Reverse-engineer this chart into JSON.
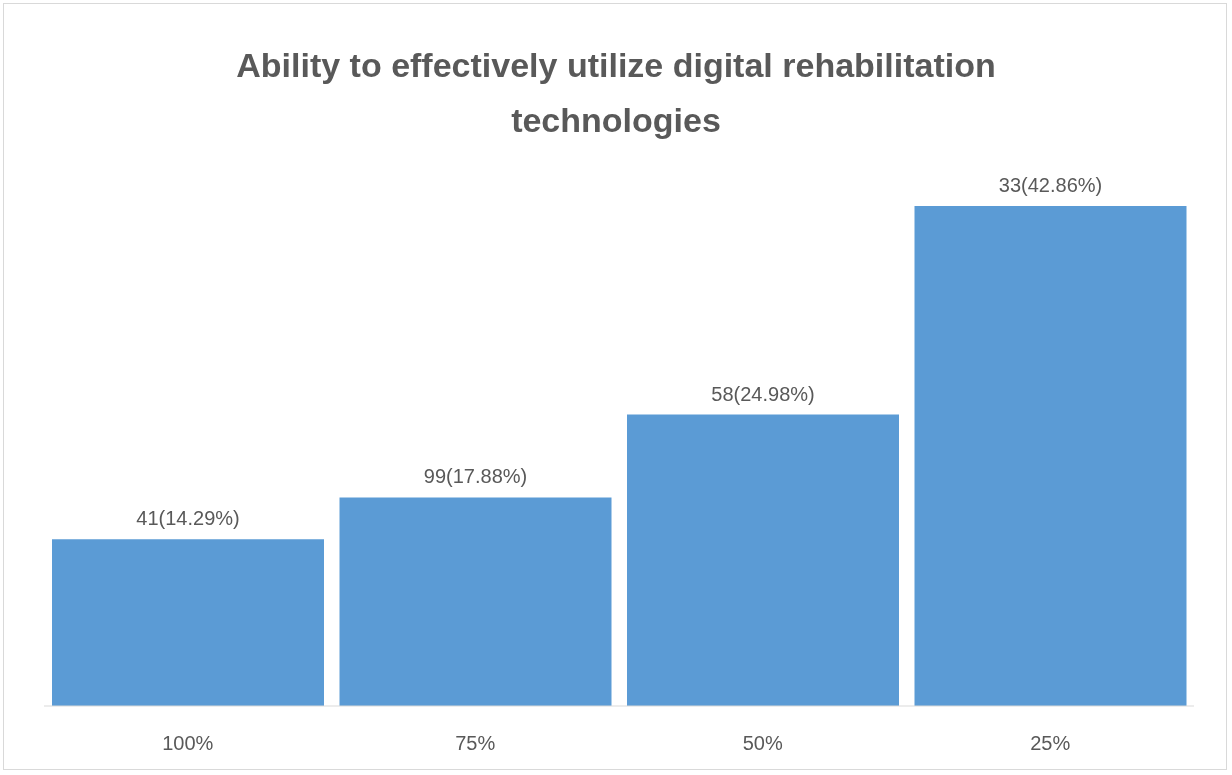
{
  "chart_data": {
    "type": "bar",
    "title": "Ability to effectively utilize digital rehabilitation technologies",
    "categories": [
      "100%",
      "75%",
      "50%",
      "25%"
    ],
    "values": [
      14.29,
      17.88,
      24.98,
      42.86
    ],
    "value_labels": [
      "41(14.29%)",
      "99(17.88%)",
      "58(24.98%)",
      "33(42.86%)"
    ],
    "color": "#5b9bd5",
    "grid": false
  }
}
